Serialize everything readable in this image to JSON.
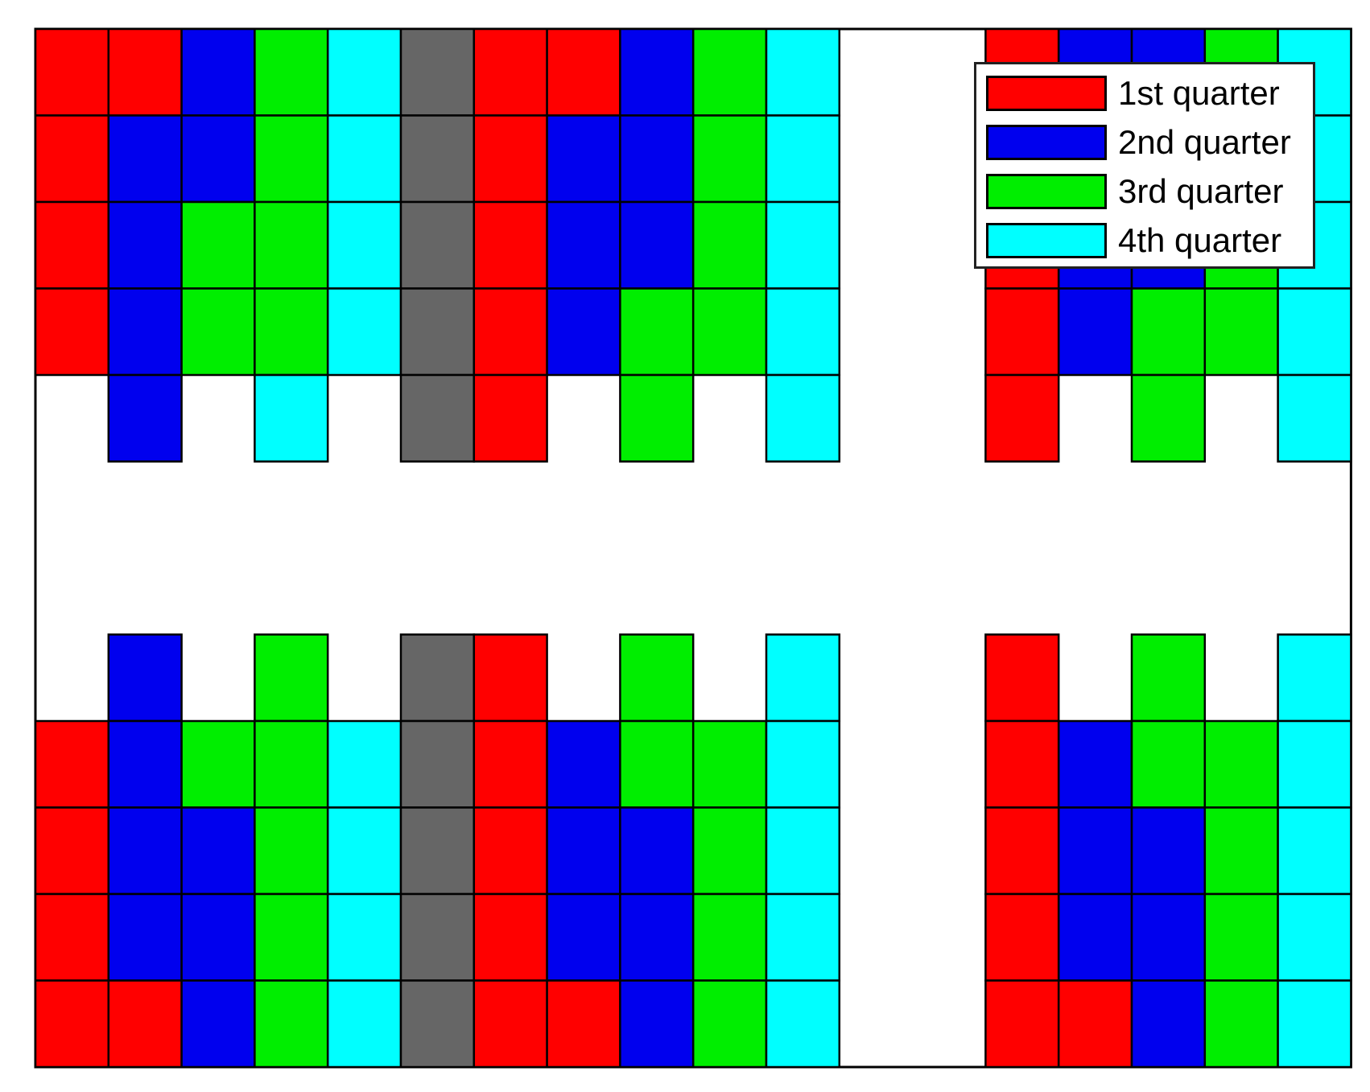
{
  "colors": {
    "q1": "#ff0000",
    "q2": "#0000ee",
    "q3": "#00ee00",
    "q4": "#00ffff",
    "reserved": "#666666"
  },
  "legend": {
    "items": [
      {
        "key": "q1",
        "label": "1st quarter"
      },
      {
        "key": "q2",
        "label": "2nd quarter"
      },
      {
        "key": "q3",
        "label": "3rd quarter"
      },
      {
        "key": "q4",
        "label": "4th quarter"
      }
    ]
  },
  "rows": [
    [
      "q1",
      "q1",
      "q2",
      "q3",
      "q4",
      "reserved",
      "q1",
      "q1",
      "q2",
      "q3",
      "q4",
      "",
      "",
      "q1",
      "q2",
      "q2",
      "q3",
      "q4"
    ],
    [
      "q1",
      "q2",
      "q2",
      "q3",
      "q4",
      "reserved",
      "q1",
      "q2",
      "q2",
      "q3",
      "q4",
      "",
      "",
      "q1",
      "q2",
      "q2",
      "q3",
      "q4"
    ],
    [
      "q1",
      "q2",
      "q3",
      "q3",
      "q4",
      "reserved",
      "q1",
      "q2",
      "q2",
      "q3",
      "q4",
      "",
      "",
      "q1",
      "q2",
      "q2",
      "q3",
      "q4"
    ],
    [
      "q1",
      "q2",
      "q3",
      "q3",
      "q4",
      "reserved",
      "q1",
      "q2",
      "q3",
      "q3",
      "q4",
      "",
      "",
      "q1",
      "q2",
      "q3",
      "q3",
      "q4"
    ],
    [
      "",
      "q2",
      "",
      "q4",
      "",
      "reserved",
      "q1",
      "",
      "q3",
      "",
      "q4",
      "",
      "",
      "q1",
      "",
      "q3",
      "",
      "q4"
    ],
    [
      "",
      "",
      "",
      "",
      "",
      "",
      "",
      "",
      "",
      "",
      "",
      "",
      "",
      "",
      "",
      "",
      "",
      ""
    ],
    [
      "",
      "",
      "",
      "",
      "",
      "",
      "",
      "",
      "",
      "",
      "",
      "",
      "",
      "",
      "",
      "",
      "",
      ""
    ],
    [
      "",
      "q2",
      "",
      "q3",
      "",
      "reserved",
      "q1",
      "",
      "q3",
      "",
      "q4",
      "",
      "",
      "q1",
      "",
      "q3",
      "",
      "q4"
    ],
    [
      "q1",
      "q2",
      "q3",
      "q3",
      "q4",
      "reserved",
      "q1",
      "q2",
      "q3",
      "q3",
      "q4",
      "",
      "",
      "q1",
      "q2",
      "q3",
      "q3",
      "q4"
    ],
    [
      "q1",
      "q2",
      "q2",
      "q3",
      "q4",
      "reserved",
      "q1",
      "q2",
      "q2",
      "q3",
      "q4",
      "",
      "",
      "q1",
      "q2",
      "q2",
      "q3",
      "q4"
    ],
    [
      "q1",
      "q2",
      "q2",
      "q3",
      "q4",
      "reserved",
      "q1",
      "q2",
      "q2",
      "q3",
      "q4",
      "",
      "",
      "q1",
      "q2",
      "q2",
      "q3",
      "q4"
    ],
    [
      "q1",
      "q1",
      "q2",
      "q3",
      "q4",
      "reserved",
      "q1",
      "q1",
      "q2",
      "q3",
      "q4",
      "",
      "",
      "q1",
      "q1",
      "q2",
      "q3",
      "q4"
    ]
  ]
}
